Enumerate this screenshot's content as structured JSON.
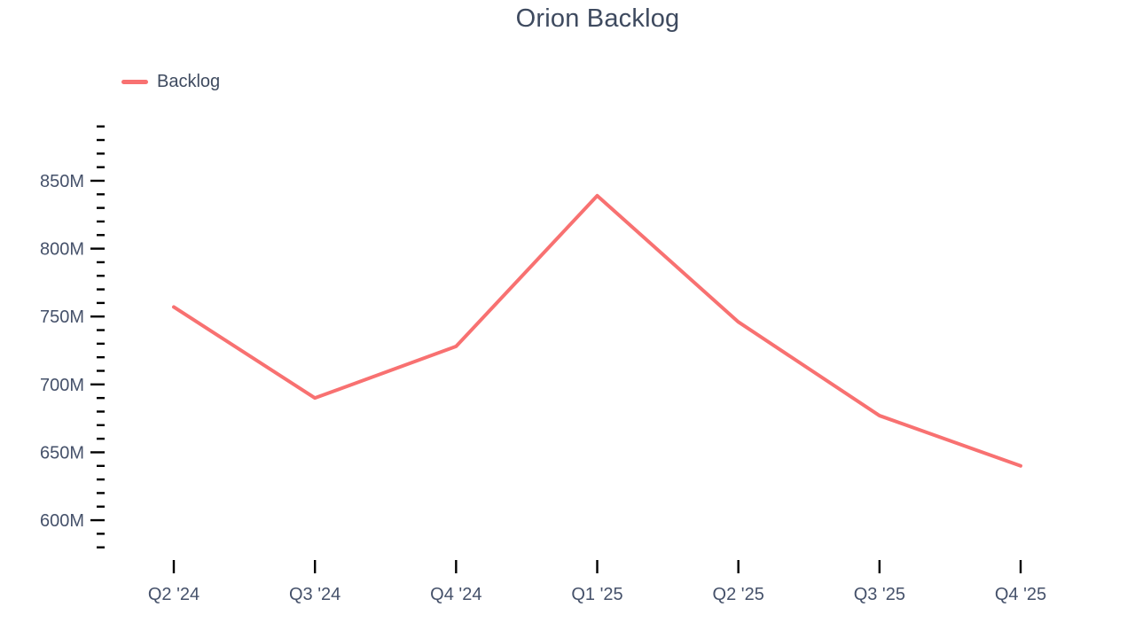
{
  "chart_data": {
    "type": "line",
    "title": "Orion Backlog",
    "categories": [
      "Q2 '24",
      "Q3 '24",
      "Q4 '24",
      "Q1 '25",
      "Q2 '25",
      "Q3 '25",
      "Q4 '25"
    ],
    "series": [
      {
        "name": "Backlog",
        "color": "#f87171",
        "values": [
          757,
          690,
          728,
          839,
          746,
          677,
          640
        ]
      }
    ],
    "unit": "M",
    "xlabel": "",
    "ylabel": "",
    "ylim": [
      580,
      890
    ],
    "y_minor_step": 10,
    "y_major_ticks": [
      {
        "value": 600,
        "label": "600M"
      },
      {
        "value": 650,
        "label": "650M"
      },
      {
        "value": 700,
        "label": "700M"
      },
      {
        "value": 750,
        "label": "750M"
      },
      {
        "value": 800,
        "label": "800M"
      },
      {
        "value": 850,
        "label": "850M"
      }
    ],
    "grid": false,
    "axis_line": false,
    "legend": {
      "position": "top-left",
      "items": [
        {
          "label": "Backlog",
          "color": "#f87171"
        }
      ]
    }
  },
  "theme": {
    "background": "#ffffff",
    "title_color": "#3e4a5f",
    "axis_text_color": "#45516a",
    "tick_color": "#000000",
    "line_color": "#f87171"
  }
}
